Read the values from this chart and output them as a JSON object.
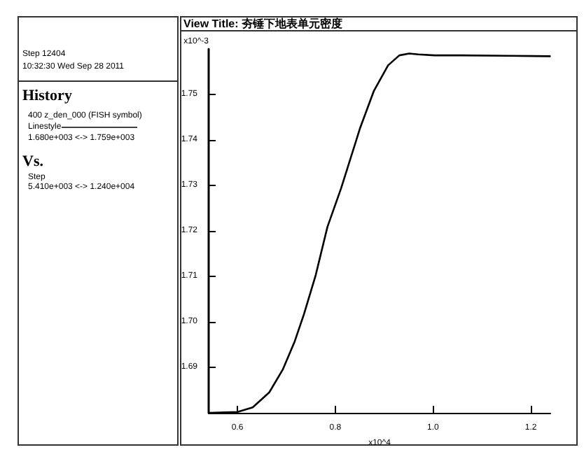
{
  "chart_data": {
    "type": "line",
    "title": "View Title: 夯锤下地表单元密度",
    "xlabel": "x10^4",
    "ylabel": "x10^-3",
    "annotations": [
      "Step 12404",
      "10:32:30 Wed Sep 28 2011",
      "History",
      "400 z_den_000 (FISH symbol)",
      "Linestyle",
      "1.680e+003 <-> 1.759e+003",
      "Vs.",
      "Step",
      "5.410e+003 <-> 1.240e+004"
    ],
    "x": [
      0.543,
      0.6,
      0.631,
      0.665,
      0.693,
      0.717,
      0.736,
      0.76,
      0.784,
      0.812,
      0.851,
      0.879,
      0.908,
      0.931,
      0.951,
      0.97,
      1.003,
      1.06,
      1.155,
      1.239
    ],
    "series": [
      {
        "color": "#000000",
        "values": [
          1.68,
          1.6802,
          1.6812,
          1.6845,
          1.6896,
          1.6957,
          1.7017,
          1.7103,
          1.7209,
          1.7294,
          1.7427,
          1.7508,
          1.7564,
          1.7586,
          1.759,
          1.7588,
          1.7586,
          1.7586,
          1.7585,
          1.7584
        ]
      }
    ],
    "xlim": [
      0.541,
      1.24
    ],
    "ylim": [
      1.68,
      1.76
    ],
    "xticks": [
      0.6,
      0.8,
      {
        "value": 1,
        "label": "1.0"
      },
      1.2
    ],
    "yticks": [
      1.69,
      {
        "value": 1.7,
        "label": "1.70"
      },
      1.71,
      1.72,
      1.73,
      1.74,
      1.75
    ],
    "grid": false,
    "marker": "none",
    "line_style": "solid"
  }
}
